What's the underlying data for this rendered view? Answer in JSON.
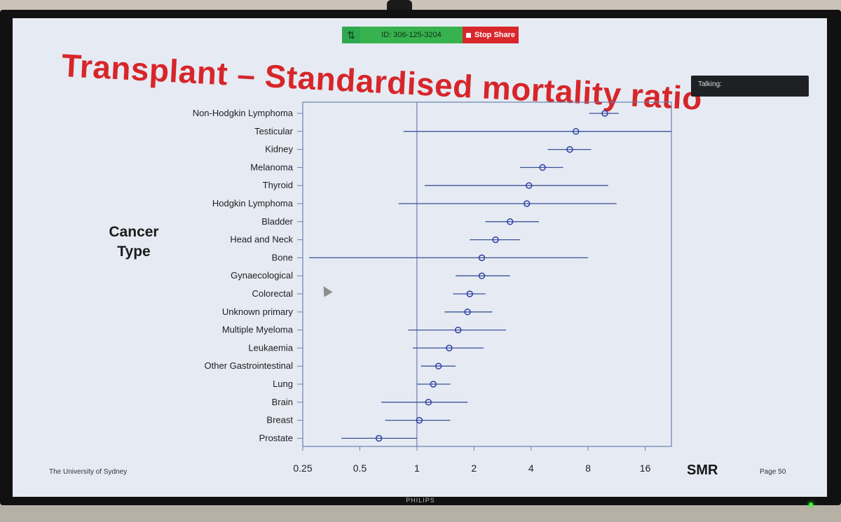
{
  "zoom": {
    "meeting_id": "ID: 306-125-3204",
    "stop_share": "Stop Share"
  },
  "talking": "Talking:",
  "slide": {
    "title": "Transplant – Standardised mortality ratio",
    "footer_left": "The University of Sydney",
    "page": "Page 50"
  },
  "tv_brand": "PHILIPS",
  "icons": {
    "grip": "drag-grip-icon",
    "stop": "stop-square-icon",
    "cursor": "mouse-pointer-icon"
  },
  "colors": {
    "title": "#d7262a",
    "marker": "#2b3fa8",
    "ci_line": "#3a5299",
    "axis": "#6b7fb0"
  },
  "chart_data": {
    "type": "forest",
    "ylabel_lines": [
      "Cancer",
      "Type"
    ],
    "xlabel": "SMR",
    "x_scale": "log2",
    "x_ticks": [
      0.25,
      0.5,
      1,
      2,
      4,
      8,
      16
    ],
    "x_tick_labels": [
      "0.25",
      "0.5",
      "1",
      "2",
      "4",
      "8",
      "16"
    ],
    "xlim": [
      0.25,
      22
    ],
    "reference_line": 1,
    "rows": [
      {
        "label": "Non-Hodgkin Lymphoma",
        "smr": 9.8,
        "lo": 8.1,
        "hi": 11.6
      },
      {
        "label": "Testicular",
        "smr": 6.9,
        "lo": 0.85,
        "hi": 22
      },
      {
        "label": "Kidney",
        "smr": 6.4,
        "lo": 4.9,
        "hi": 8.3
      },
      {
        "label": "Melanoma",
        "smr": 4.6,
        "lo": 3.5,
        "hi": 5.9
      },
      {
        "label": "Thyroid",
        "smr": 3.9,
        "lo": 1.1,
        "hi": 10.2
      },
      {
        "label": "Hodgkin Lymphoma",
        "smr": 3.8,
        "lo": 0.8,
        "hi": 11.3
      },
      {
        "label": "Bladder",
        "smr": 3.1,
        "lo": 2.3,
        "hi": 4.4
      },
      {
        "label": "Head and Neck",
        "smr": 2.6,
        "lo": 1.9,
        "hi": 3.5
      },
      {
        "label": "Bone",
        "smr": 2.2,
        "lo": 0.27,
        "hi": 8.0
      },
      {
        "label": "Gynaecological",
        "smr": 2.2,
        "lo": 1.6,
        "hi": 3.1
      },
      {
        "label": "Colorectal",
        "smr": 1.9,
        "lo": 1.55,
        "hi": 2.3
      },
      {
        "label": "Unknown primary",
        "smr": 1.85,
        "lo": 1.4,
        "hi": 2.5
      },
      {
        "label": "Multiple Myeloma",
        "smr": 1.65,
        "lo": 0.9,
        "hi": 2.95
      },
      {
        "label": "Leukaemia",
        "smr": 1.48,
        "lo": 0.95,
        "hi": 2.25
      },
      {
        "label": "Other Gastrointestinal",
        "smr": 1.3,
        "lo": 1.05,
        "hi": 1.6
      },
      {
        "label": "Lung",
        "smr": 1.22,
        "lo": 1.0,
        "hi": 1.5
      },
      {
        "label": "Brain",
        "smr": 1.15,
        "lo": 0.65,
        "hi": 1.85
      },
      {
        "label": "Breast",
        "smr": 1.03,
        "lo": 0.68,
        "hi": 1.5
      },
      {
        "label": "Prostate",
        "smr": 0.63,
        "lo": 0.4,
        "hi": 1.0
      }
    ]
  }
}
